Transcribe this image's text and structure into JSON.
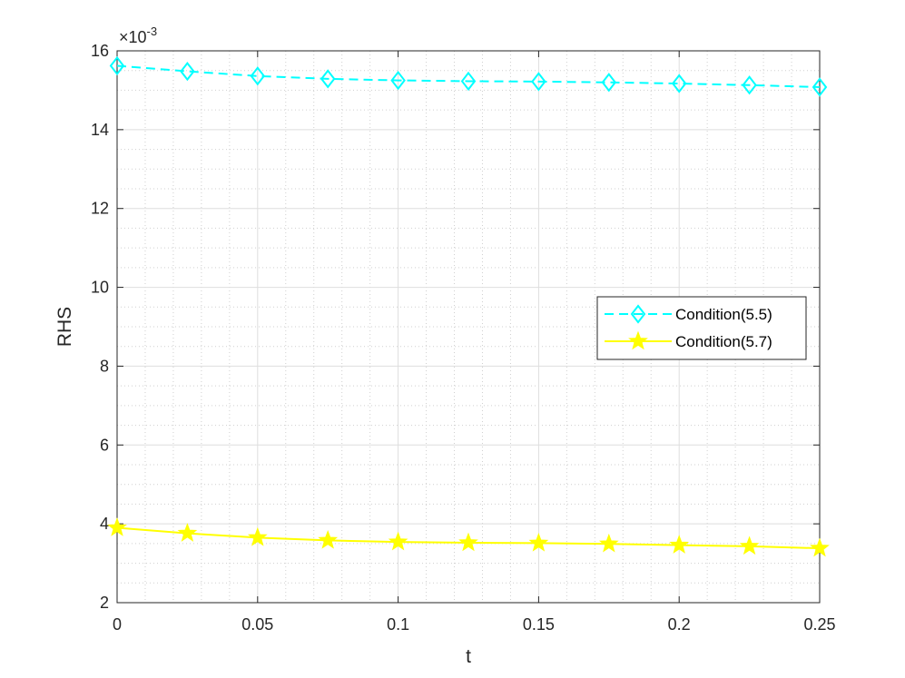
{
  "chart_data": {
    "type": "line",
    "title": "",
    "xlabel": "t",
    "ylabel": "RHS",
    "y_exponent_label": "×10",
    "y_exponent_power": "-3",
    "xlim": [
      0,
      0.25
    ],
    "ylim": [
      2,
      16
    ],
    "xticks": [
      0,
      0.05,
      0.1,
      0.15,
      0.2,
      0.25
    ],
    "xtick_labels": [
      "0",
      "0.05",
      "0.1",
      "0.15",
      "0.2",
      "0.25"
    ],
    "yticks": [
      2,
      4,
      6,
      8,
      10,
      12,
      14,
      16
    ],
    "ytick_labels": [
      "2",
      "4",
      "6",
      "8",
      "10",
      "12",
      "14",
      "16"
    ],
    "grid": true,
    "minor_grid": true,
    "legend_position": "center-right",
    "x": [
      0,
      0.025,
      0.05,
      0.075,
      0.1,
      0.125,
      0.15,
      0.175,
      0.2,
      0.225,
      0.25
    ],
    "series": [
      {
        "name": "Condition(5.5)",
        "color": "#00ffff",
        "line_style": "dashed",
        "marker": "diamond",
        "values": [
          15.62,
          15.48,
          15.36,
          15.29,
          15.25,
          15.23,
          15.22,
          15.2,
          15.17,
          15.13,
          15.08
        ]
      },
      {
        "name": "Condition(5.7)",
        "color": "#ffff00",
        "line_style": "solid",
        "marker": "star",
        "values": [
          3.9,
          3.76,
          3.65,
          3.58,
          3.54,
          3.52,
          3.51,
          3.49,
          3.46,
          3.43,
          3.38
        ]
      }
    ]
  }
}
